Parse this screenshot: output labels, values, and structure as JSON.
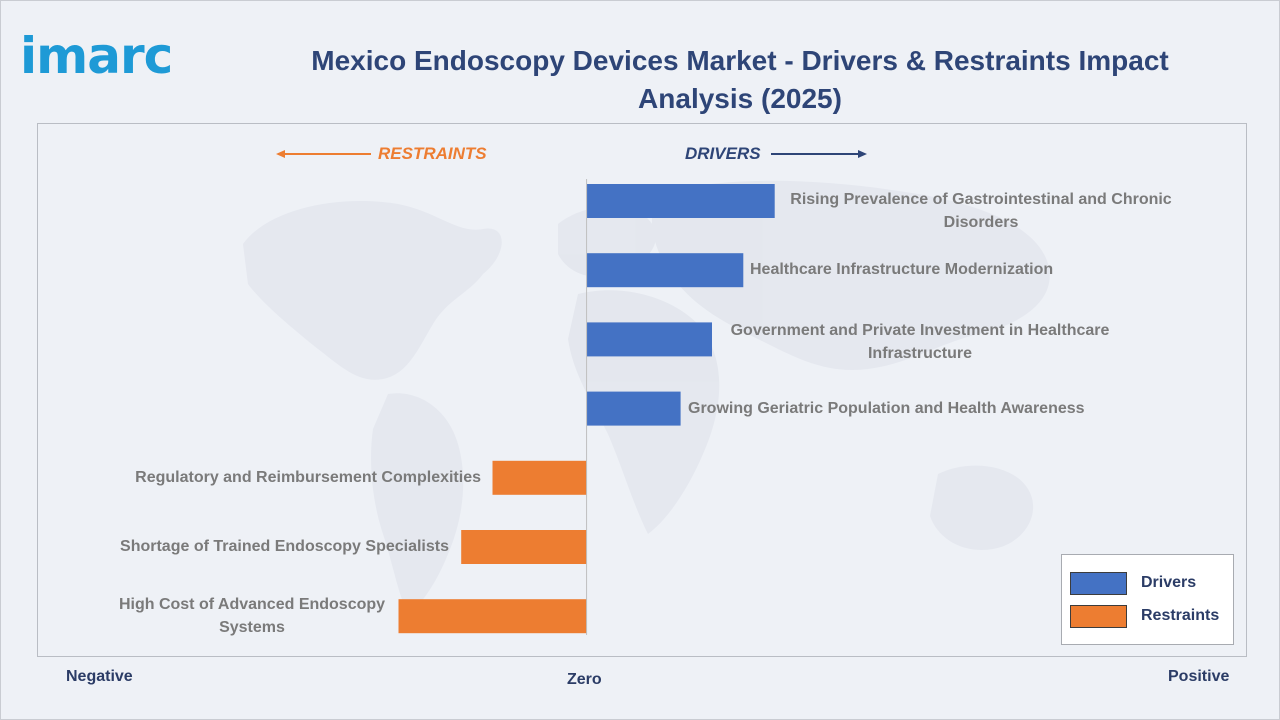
{
  "brand": {
    "logo_text": "imarc"
  },
  "chart_data": {
    "type": "bar",
    "orientation": "horizontal",
    "title": "Mexico Endoscopy Devices Market - Drivers & Restraints Impact Analysis (2025)",
    "direction_labels": {
      "negative": "RESTRAINTS",
      "positive": "DRIVERS"
    },
    "axis_labels": {
      "left": "Negative",
      "center": "Zero",
      "right": "Positive"
    },
    "categories": [
      "Rising Prevalence of Gastrointestinal and Chronic Disorders",
      "Healthcare Infrastructure Modernization",
      "Government and Private Investment in Healthcare Infrastructure",
      "Growing Geriatric Population and Health Awareness",
      "Regulatory and Reimbursement Complexities",
      "Shortage of Trained Endoscopy Specialists",
      "High Cost of Advanced Endoscopy Systems"
    ],
    "series": [
      {
        "name": "Drivers",
        "color": "#4472c4",
        "values": [
          6,
          5,
          4,
          3,
          0,
          0,
          0
        ]
      },
      {
        "name": "Restraints",
        "color": "#ed7d31",
        "values": [
          0,
          0,
          0,
          0,
          -3,
          -4,
          -6
        ]
      }
    ],
    "xlim": [
      -17.5,
      21.1
    ],
    "legend_position": "bottom-right",
    "grid": false
  }
}
